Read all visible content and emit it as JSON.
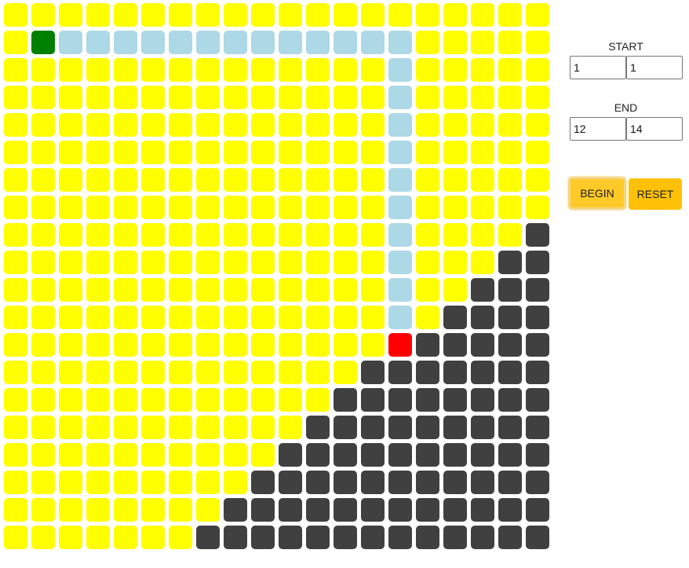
{
  "grid": {
    "rows": 20,
    "cols": 20,
    "colors": {
      "open": "#ffff00",
      "wall": "#404040",
      "start": "#008000",
      "end": "#ff0000",
      "path": "#add8e6"
    },
    "start_cell": [
      1,
      1
    ],
    "end_cell": [
      12,
      14
    ],
    "path_cells": [
      [
        1,
        2
      ],
      [
        1,
        3
      ],
      [
        1,
        4
      ],
      [
        1,
        5
      ],
      [
        1,
        6
      ],
      [
        1,
        7
      ],
      [
        1,
        8
      ],
      [
        1,
        9
      ],
      [
        1,
        10
      ],
      [
        1,
        11
      ],
      [
        1,
        12
      ],
      [
        1,
        13
      ],
      [
        1,
        14
      ],
      [
        2,
        14
      ],
      [
        3,
        14
      ],
      [
        4,
        14
      ],
      [
        5,
        14
      ],
      [
        6,
        14
      ],
      [
        7,
        14
      ],
      [
        8,
        14
      ],
      [
        9,
        14
      ],
      [
        10,
        14
      ],
      [
        11,
        14
      ]
    ],
    "wall_rows": [
      {
        "row": 8,
        "from": 19
      },
      {
        "row": 9,
        "from": 18
      },
      {
        "row": 10,
        "from": 17
      },
      {
        "row": 11,
        "from": 16
      },
      {
        "row": 12,
        "from": 15
      },
      {
        "row": 13,
        "from": 13
      },
      {
        "row": 14,
        "from": 12
      },
      {
        "row": 15,
        "from": 11
      },
      {
        "row": 16,
        "from": 10
      },
      {
        "row": 17,
        "from": 9
      },
      {
        "row": 18,
        "from": 8
      },
      {
        "row": 19,
        "from": 7
      }
    ]
  },
  "controls": {
    "start_label": "START",
    "start_row": "1",
    "start_col": "1",
    "end_label": "END",
    "end_row": "12",
    "end_col": "14",
    "begin_label": "BEGIN",
    "reset_label": "RESET"
  }
}
